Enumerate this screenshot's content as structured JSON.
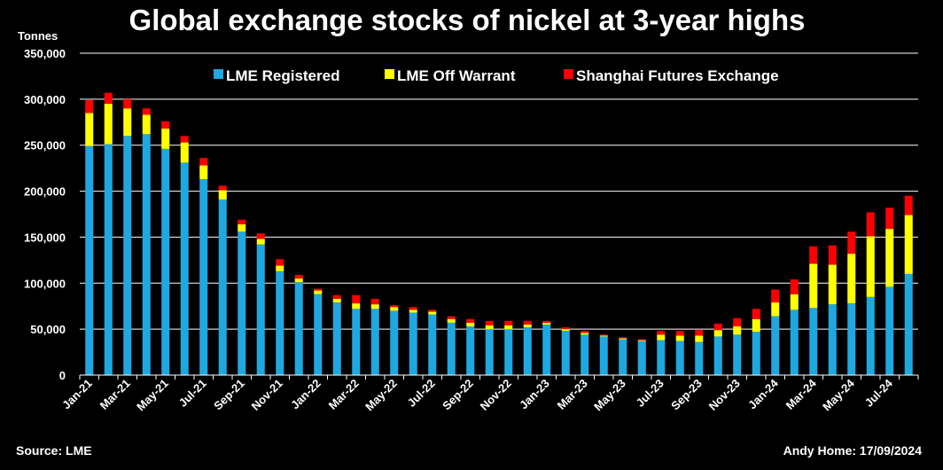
{
  "chart_data": {
    "type": "bar",
    "stacked": true,
    "title": "Global exchange stocks of nickel at 3-year highs",
    "ylabel": "Tonnes",
    "xlabel": "",
    "ylim": [
      0,
      350000
    ],
    "yticks": [
      0,
      50000,
      100000,
      150000,
      200000,
      250000,
      300000,
      350000
    ],
    "ytick_labels": [
      "0",
      "50,000",
      "100,000",
      "150,000",
      "200,000",
      "250,000",
      "300,000",
      "350,000"
    ],
    "grid": true,
    "legend_position": "top",
    "xtick_labels": [
      "Jan-21",
      "Mar-21",
      "May-21",
      "Jul-21",
      "Sep-21",
      "Nov-21",
      "Jan-22",
      "Mar-22",
      "May-22",
      "Jul-22",
      "Sep-22",
      "Nov-22",
      "Jan-23",
      "Mar-23",
      "May-23",
      "Jul-23",
      "Sep-23",
      "Nov-23",
      "Jan-24",
      "Mar-24",
      "May-24",
      "Jul-24"
    ],
    "categories": [
      "Jan-21",
      "Feb-21",
      "Mar-21",
      "Apr-21",
      "May-21",
      "Jun-21",
      "Jul-21",
      "Aug-21",
      "Sep-21",
      "Oct-21",
      "Nov-21",
      "Dec-21",
      "Jan-22",
      "Feb-22",
      "Mar-22",
      "Apr-22",
      "May-22",
      "Jun-22",
      "Jul-22",
      "Aug-22",
      "Sep-22",
      "Oct-22",
      "Nov-22",
      "Dec-22",
      "Jan-23",
      "Feb-23",
      "Mar-23",
      "Apr-23",
      "May-23",
      "Jun-23",
      "Jul-23",
      "Aug-23",
      "Sep-23",
      "Oct-23",
      "Nov-23",
      "Dec-23",
      "Jan-24",
      "Feb-24",
      "Mar-24",
      "Apr-24",
      "May-24",
      "Jun-24",
      "Jul-24",
      "Aug-24"
    ],
    "series": [
      {
        "name": "LME Registered",
        "color": "#1fa8e0",
        "values": [
          249000,
          251000,
          260000,
          262000,
          246000,
          231000,
          213000,
          191000,
          156000,
          142000,
          113000,
          101000,
          88000,
          79000,
          72000,
          72000,
          70000,
          68000,
          66000,
          57000,
          53000,
          50000,
          50000,
          52000,
          55000,
          48000,
          44000,
          42000,
          39000,
          37000,
          38000,
          37000,
          36000,
          42000,
          44000,
          47000,
          64000,
          71000,
          73000,
          77000,
          78000,
          85000,
          96000,
          110000
        ]
      },
      {
        "name": "LME Off Warrant",
        "color": "#ffff00",
        "values": [
          36000,
          44000,
          30000,
          21000,
          22000,
          22000,
          15000,
          10000,
          8000,
          6000,
          6000,
          4000,
          4000,
          4000,
          6000,
          5000,
          4000,
          3000,
          3000,
          4000,
          4000,
          4000,
          4000,
          3000,
          2000,
          2000,
          2000,
          1000,
          1000,
          1000,
          6000,
          6000,
          7000,
          7000,
          9000,
          14000,
          15000,
          17000,
          48000,
          43000,
          54000,
          66000,
          63000,
          64000
        ]
      },
      {
        "name": "Shanghai Futures Exchange",
        "color": "#ff0000",
        "values": [
          14000,
          12000,
          10000,
          7000,
          8000,
          7000,
          8000,
          5000,
          5000,
          6000,
          7000,
          4000,
          2000,
          4000,
          9000,
          6000,
          2000,
          3000,
          2000,
          3000,
          4000,
          5000,
          5000,
          4000,
          2000,
          2000,
          2000,
          1000,
          1000,
          1000,
          4000,
          5000,
          6000,
          7000,
          9000,
          11000,
          14000,
          16000,
          19000,
          21000,
          24000,
          26000,
          23000,
          21000
        ]
      }
    ]
  },
  "footer": {
    "source": "Source: LME",
    "credit": "Andy Home: 17/09/2024"
  }
}
